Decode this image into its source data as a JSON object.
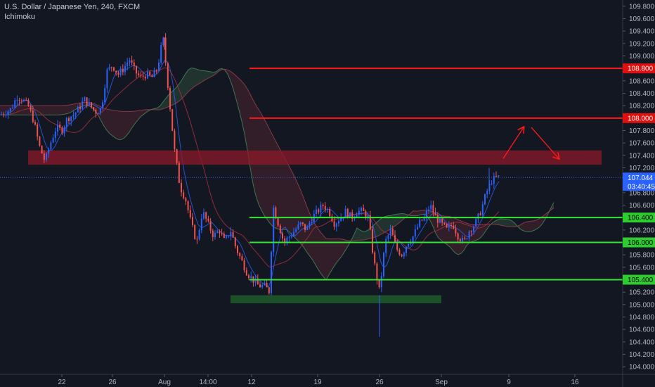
{
  "header": {
    "title": "U.S. Dollar / Japanese Yen, 240, FXCM",
    "indicator": "Ichimoku"
  },
  "colors": {
    "background": "#131722",
    "bull": "#2962ff",
    "bear": "#ef5350",
    "resistance_line": "#ff1a1a",
    "support_line": "#33e633",
    "resistance_zone": "#8b1a2a",
    "support_zone": "#1e5a2a",
    "cloud_bull": "#2b4a3a",
    "cloud_bear": "#4a2530"
  },
  "chart_data": {
    "type": "candlestick",
    "ylim": [
      103.9,
      109.9
    ],
    "y_ticks": [
      "109.800",
      "109.600",
      "109.400",
      "109.200",
      "109.000",
      "108.800",
      "108.600",
      "108.400",
      "108.200",
      "108.000",
      "107.800",
      "107.600",
      "107.400",
      "107.200",
      "107.000",
      "106.800",
      "106.600",
      "106.400",
      "106.200",
      "106.000",
      "105.800",
      "105.600",
      "105.400",
      "105.200",
      "105.000",
      "104.800",
      "104.600",
      "104.400",
      "104.200",
      "104.000"
    ],
    "x_ticks": [
      "22",
      "26",
      "Aug",
      "14:00",
      "12",
      "19",
      "26",
      "Sep",
      "9",
      "16"
    ],
    "current_price": "107.044",
    "countdown": "03:40:45",
    "price_lines": [
      {
        "value": 108.8,
        "label": "108.800",
        "kind": "resistance"
      },
      {
        "value": 108.0,
        "label": "108.000",
        "kind": "resistance"
      },
      {
        "value": 106.4,
        "label": "106.400",
        "kind": "support"
      },
      {
        "value": 106.0,
        "label": "106.000",
        "kind": "support"
      },
      {
        "value": 105.4,
        "label": "105.400",
        "kind": "support"
      }
    ],
    "zones": [
      {
        "name": "resistance-zone",
        "low": 107.25,
        "high": 107.48
      },
      {
        "name": "support-zone",
        "low": 105.02,
        "high": 105.15
      }
    ],
    "projection_arrows": [
      {
        "from": 107.35,
        "to": 107.85
      },
      {
        "from": 107.85,
        "to": 107.35
      }
    ],
    "close_path": [
      [
        0,
        108.05
      ],
      [
        8,
        108.1
      ],
      [
        16,
        108.15
      ],
      [
        24,
        108.35
      ],
      [
        32,
        108.3
      ],
      [
        40,
        108.2
      ],
      [
        48,
        107.95
      ],
      [
        56,
        107.55
      ],
      [
        64,
        107.3
      ],
      [
        72,
        107.6
      ],
      [
        80,
        107.85
      ],
      [
        88,
        107.8
      ],
      [
        96,
        108.0
      ],
      [
        104,
        108.05
      ],
      [
        112,
        108.15
      ],
      [
        120,
        108.3
      ],
      [
        128,
        108.2
      ],
      [
        136,
        108.1
      ],
      [
        144,
        108.15
      ],
      [
        152,
        108.75
      ],
      [
        160,
        108.85
      ],
      [
        168,
        108.7
      ],
      [
        176,
        108.8
      ],
      [
        184,
        108.95
      ],
      [
        192,
        108.75
      ],
      [
        200,
        108.65
      ],
      [
        208,
        108.7
      ],
      [
        216,
        108.65
      ],
      [
        224,
        108.8
      ],
      [
        232,
        109.3
      ],
      [
        240,
        108.4
      ],
      [
        248,
        107.5
      ],
      [
        256,
        106.9
      ],
      [
        264,
        106.7
      ],
      [
        272,
        106.3
      ],
      [
        280,
        106.0
      ],
      [
        288,
        106.5
      ],
      [
        296,
        106.3
      ],
      [
        304,
        106.1
      ],
      [
        312,
        106.2
      ],
      [
        320,
        106.0
      ],
      [
        328,
        106.2
      ],
      [
        336,
        105.9
      ],
      [
        344,
        105.7
      ],
      [
        352,
        105.5
      ],
      [
        360,
        105.4
      ],
      [
        368,
        105.3
      ],
      [
        376,
        105.3
      ],
      [
        384,
        105.2
      ],
      [
        388,
        106.6
      ],
      [
        396,
        106.3
      ],
      [
        404,
        106.0
      ],
      [
        412,
        106.1
      ],
      [
        420,
        106.2
      ],
      [
        428,
        106.3
      ],
      [
        436,
        106.2
      ],
      [
        444,
        106.4
      ],
      [
        452,
        106.5
      ],
      [
        460,
        106.6
      ],
      [
        468,
        106.5
      ],
      [
        476,
        106.3
      ],
      [
        484,
        106.4
      ],
      [
        492,
        106.5
      ],
      [
        500,
        106.4
      ],
      [
        508,
        106.5
      ],
      [
        516,
        106.5
      ],
      [
        524,
        106.4
      ],
      [
        532,
        105.7
      ],
      [
        540,
        105.2
      ],
      [
        548,
        106.0
      ],
      [
        556,
        106.2
      ],
      [
        564,
        105.9
      ],
      [
        572,
        105.8
      ],
      [
        580,
        106.0
      ],
      [
        588,
        106.1
      ],
      [
        596,
        106.3
      ],
      [
        604,
        106.4
      ],
      [
        612,
        106.6
      ],
      [
        620,
        106.4
      ],
      [
        628,
        106.3
      ],
      [
        636,
        106.2
      ],
      [
        644,
        106.3
      ],
      [
        652,
        106.1
      ],
      [
        660,
        106.0
      ],
      [
        668,
        106.2
      ],
      [
        676,
        106.3
      ],
      [
        684,
        106.5
      ],
      [
        692,
        106.8
      ],
      [
        700,
        107.0
      ],
      [
        708,
        107.05
      ],
      [
        712,
        107.044
      ]
    ]
  }
}
